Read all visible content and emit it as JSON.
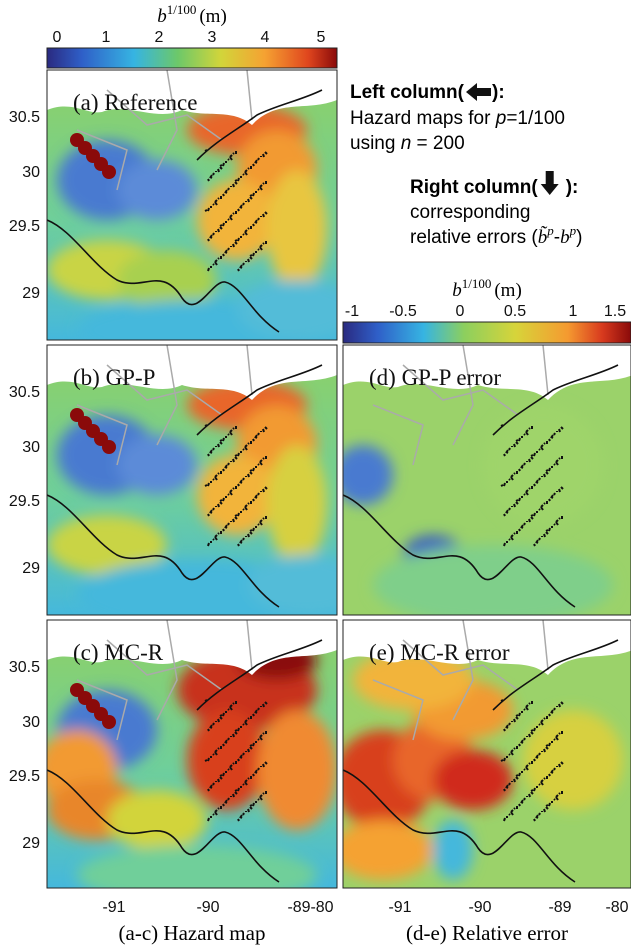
{
  "colorbars": [
    {
      "label": {
        "symbol": "b",
        "superscript": "1/100",
        "unit": "(m)"
      },
      "ticks": [
        0,
        1,
        2,
        3,
        4,
        5
      ]
    },
    {
      "label": {
        "symbol": "b",
        "superscript": "1/100",
        "unit": "(m)"
      },
      "ticks": [
        -1,
        -0.5,
        0,
        0.5,
        1,
        1.5
      ]
    }
  ],
  "legend": {
    "left": {
      "heading_start": "Left column(",
      "heading_end": "):",
      "line1": {
        "text": "Hazard maps for ",
        "var": "p",
        "rest": "=1/100"
      },
      "line2": {
        "text": "using ",
        "var": "n",
        "rest": " = 200"
      }
    },
    "right": {
      "heading_start": "Right column(",
      "heading_end": "):",
      "line1": "corresponding",
      "line2": {
        "text": "relative errors (",
        "a": "b̃",
        "a_sup": "p",
        "dash": "-",
        "b": "b",
        "b_sup": "p",
        "close": ")"
      }
    }
  },
  "panels": [
    {
      "label": "(a) Reference"
    },
    {
      "label": "(b) GP-P"
    },
    {
      "label": "(c) MC-R"
    },
    {
      "label": "(d) GP-P error"
    },
    {
      "label": "(e) MC-R error"
    }
  ],
  "y_ticks": [
    30.5,
    30,
    29.5,
    29
  ],
  "x_ticks": {
    "left": [
      -91,
      -90,
      -89,
      -80
    ],
    "right": [
      -91,
      -90,
      -89,
      -80
    ]
  },
  "captions": [
    "(a-c) Hazard map",
    "(d-e) Relative error"
  ]
}
